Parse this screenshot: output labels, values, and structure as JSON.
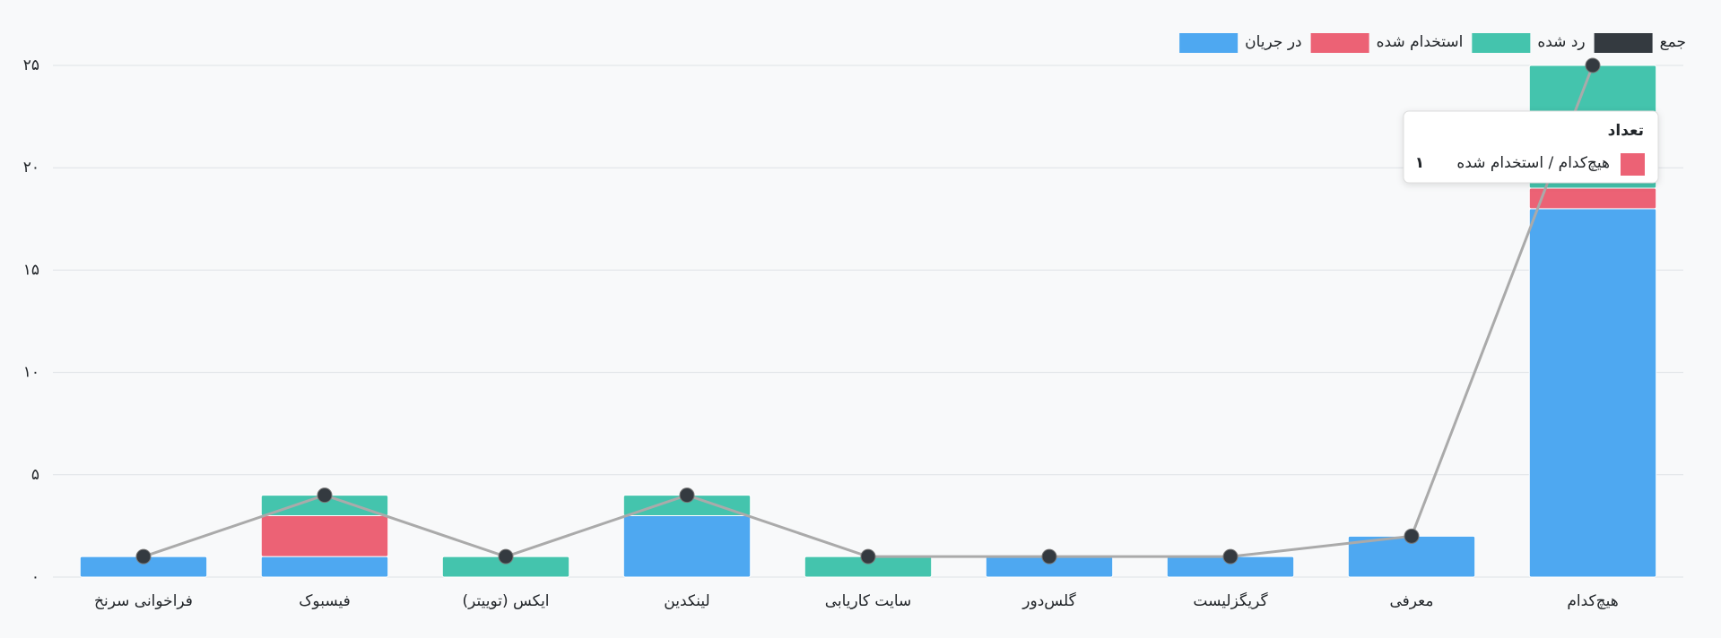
{
  "chart_data": {
    "type": "bar",
    "categories": [
      "فراخوانی سرنخ",
      "فیسبوک",
      "ایکس (توییتر)",
      "لینکدین",
      "سایت کاریابی",
      "گلس‌دور",
      "گریگزلیست",
      "معرفی",
      "هیچ‌کدام"
    ],
    "stacked": true,
    "series": [
      {
        "name": "جمع",
        "type": "line",
        "color": "#343a40",
        "values": [
          1,
          4,
          1,
          4,
          1,
          1,
          1,
          2,
          25
        ]
      },
      {
        "name": "رد شده",
        "color": "#44c4ad",
        "values": [
          0,
          1,
          1,
          1,
          1,
          0,
          0,
          0,
          6
        ]
      },
      {
        "name": "استخدام شده",
        "color": "#ec6275",
        "values": [
          0,
          2,
          0,
          0,
          0,
          0,
          0,
          0,
          1
        ]
      },
      {
        "name": "در جریان",
        "color": "#4ea8f1",
        "values": [
          1,
          1,
          0,
          3,
          0,
          1,
          1,
          2,
          18
        ]
      }
    ],
    "ylim": [
      0,
      25
    ],
    "yticks": [
      {
        "value": 0,
        "label": "۰"
      },
      {
        "value": 5,
        "label": "۵"
      },
      {
        "value": 10,
        "label": "۱۰"
      },
      {
        "value": 15,
        "label": "۱۵"
      },
      {
        "value": 20,
        "label": "۲۰"
      },
      {
        "value": 25,
        "label": "۲۵"
      }
    ],
    "grid": true,
    "legend": "top-right",
    "tooltip": {
      "title": "تعداد",
      "label": "هیچ‌کدام / استخدام شده",
      "value_label": "۱"
    }
  }
}
